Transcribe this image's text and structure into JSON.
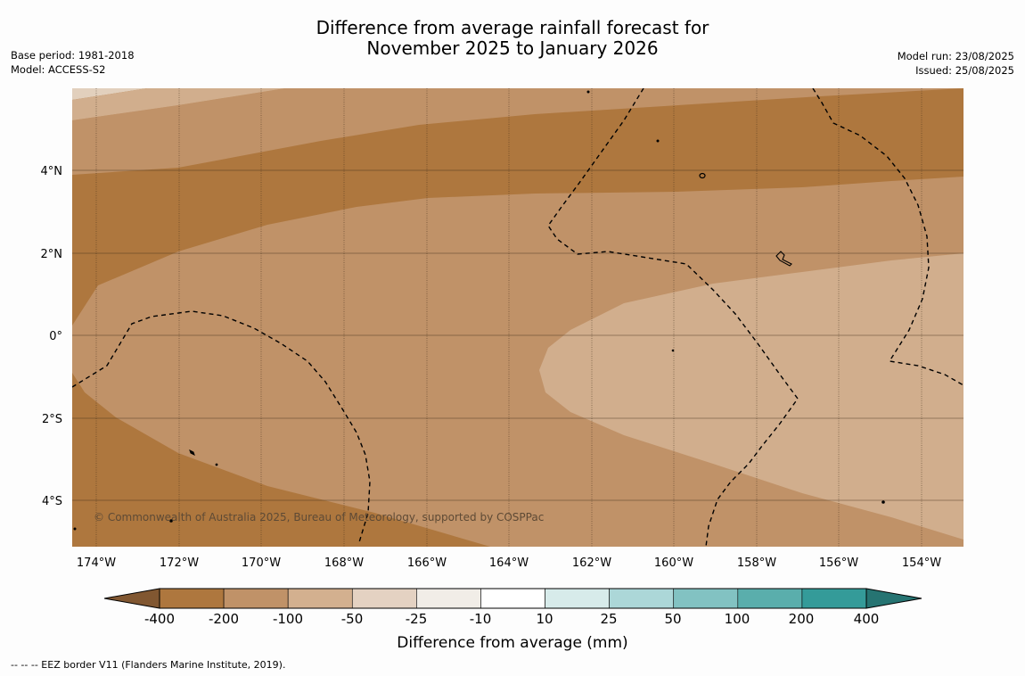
{
  "title": {
    "line1": "Difference from average rainfall forecast for",
    "line2": "November 2025 to January 2026"
  },
  "meta_left": {
    "base_period": "Base period: 1981-2018",
    "model": "Model: ACCESS-S2"
  },
  "meta_right": {
    "model_run": "Model run: 23/08/2025",
    "issued": "Issued: 25/08/2025"
  },
  "copyright": "© Commonwealth of Australia 2025, Bureau of Meteorology, supported by COSPPac",
  "lat_labels": [
    "4°N",
    "2°N",
    "0°",
    "2°S",
    "4°S"
  ],
  "lon_labels": [
    "174°W",
    "172°W",
    "170°W",
    "168°W",
    "166°W",
    "164°W",
    "162°W",
    "160°W",
    "158°W",
    "156°W",
    "154°W"
  ],
  "colorbar": {
    "title": "Difference from average (mm)",
    "ticks": [
      "-400",
      "-200",
      "-100",
      "-50",
      "-25",
      "-10",
      "10",
      "25",
      "50",
      "100",
      "200",
      "400"
    ],
    "colors": [
      "#ae773e",
      "#c09268",
      "#d3b08f",
      "#e4d2c2",
      "#f1ede7",
      "#ffffff",
      "#d7ebea",
      "#acd7d8",
      "#82c2c2",
      "#5aaeac",
      "#349b99"
    ],
    "extend_low": "#815731",
    "extend_high": "#267472"
  },
  "footnote": "--  --  -- EEZ border V11 (Flanders Marine Institute, 2019).",
  "map_colors": {
    "deep": "#ae773e",
    "mid": "#c09268",
    "light": "#d1ae8d",
    "lightest": "#e2d0bd"
  }
}
